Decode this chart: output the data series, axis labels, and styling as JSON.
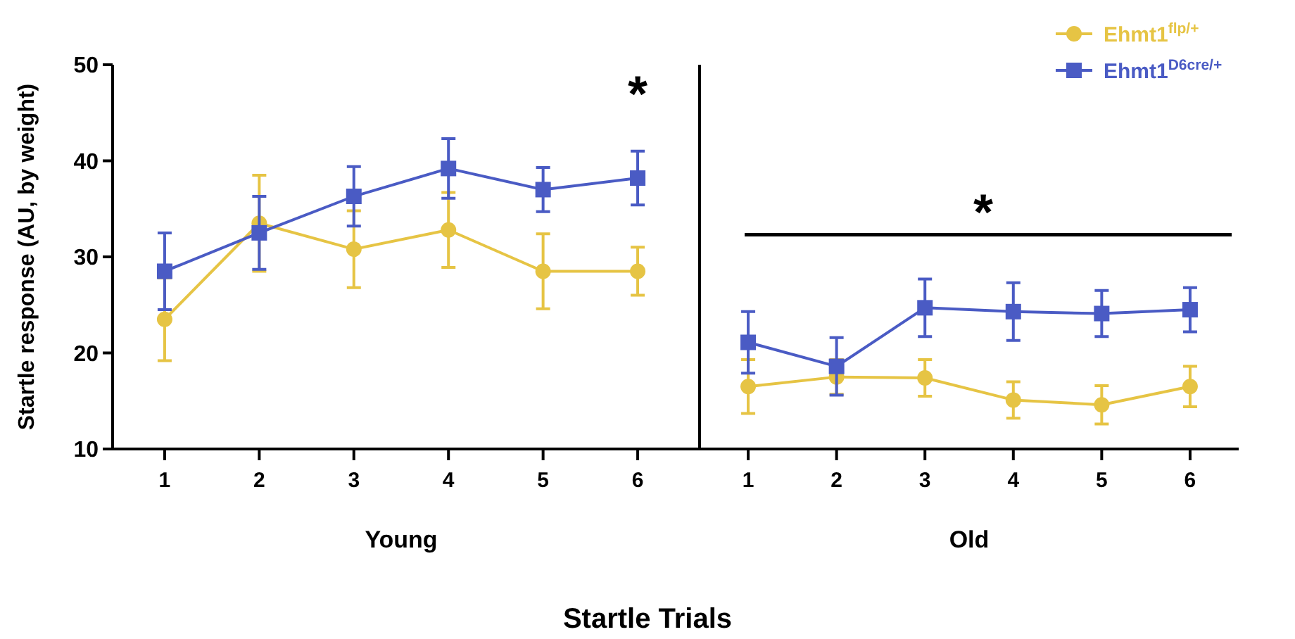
{
  "chart_data": [
    {
      "type": "line",
      "ylabel": "Startle response (AU, by weight)",
      "xlabel": "Young",
      "categories": [
        "1",
        "2",
        "3",
        "4",
        "5",
        "6"
      ],
      "ylim": [
        10,
        50
      ],
      "yticks": [
        10,
        20,
        30,
        40,
        50
      ],
      "grid": false,
      "legend": false,
      "series": [
        {
          "color": "#e6c444",
          "marker": "circle",
          "values": [
            23.5,
            33.5,
            30.8,
            32.8,
            28.5,
            28.5
          ],
          "errors": [
            4.3,
            5,
            4,
            3.9,
            3.9,
            2.5
          ]
        },
        {
          "color": "#4a5bc4",
          "marker": "square",
          "values": [
            28.5,
            32.5,
            36.3,
            39.2,
            37.0,
            38.2
          ],
          "errors": [
            4,
            3.8,
            3.1,
            3.1,
            2.3,
            2.8
          ]
        }
      ],
      "annotations": [
        "*",
        "Startle Trials"
      ]
    },
    {
      "type": "line",
      "xlabel": "Old",
      "categories": [
        "1",
        "2",
        "3",
        "4",
        "5",
        "6"
      ],
      "ylim": [
        10,
        50
      ],
      "yticks": [
        10,
        20,
        30,
        40,
        50
      ],
      "tick_labels": "x",
      "grid": false,
      "legend": "top right",
      "series": [
        {
          "name": "Ehmt1$^{flp/+}$",
          "color": "#e6c444",
          "marker": "circle",
          "values": [
            16.5,
            17.5,
            17.4,
            15.1,
            14.6,
            16.5
          ],
          "errors": [
            2.8,
            1.8,
            1.9,
            1.9,
            2,
            2.1
          ]
        },
        {
          "name": "Ehmt1$^{D6cre/+}$",
          "color": "#4a5bc4",
          "marker": "square",
          "values": [
            21.1,
            18.6,
            24.7,
            24.3,
            24.1,
            24.5
          ],
          "errors": [
            3.2,
            3,
            3,
            3,
            2.4,
            2.3
          ]
        }
      ],
      "ref_lines": [
        {
          "axis": "y",
          "value": 32.3,
          "label": "*",
          "color": "#000000"
        }
      ]
    }
  ]
}
